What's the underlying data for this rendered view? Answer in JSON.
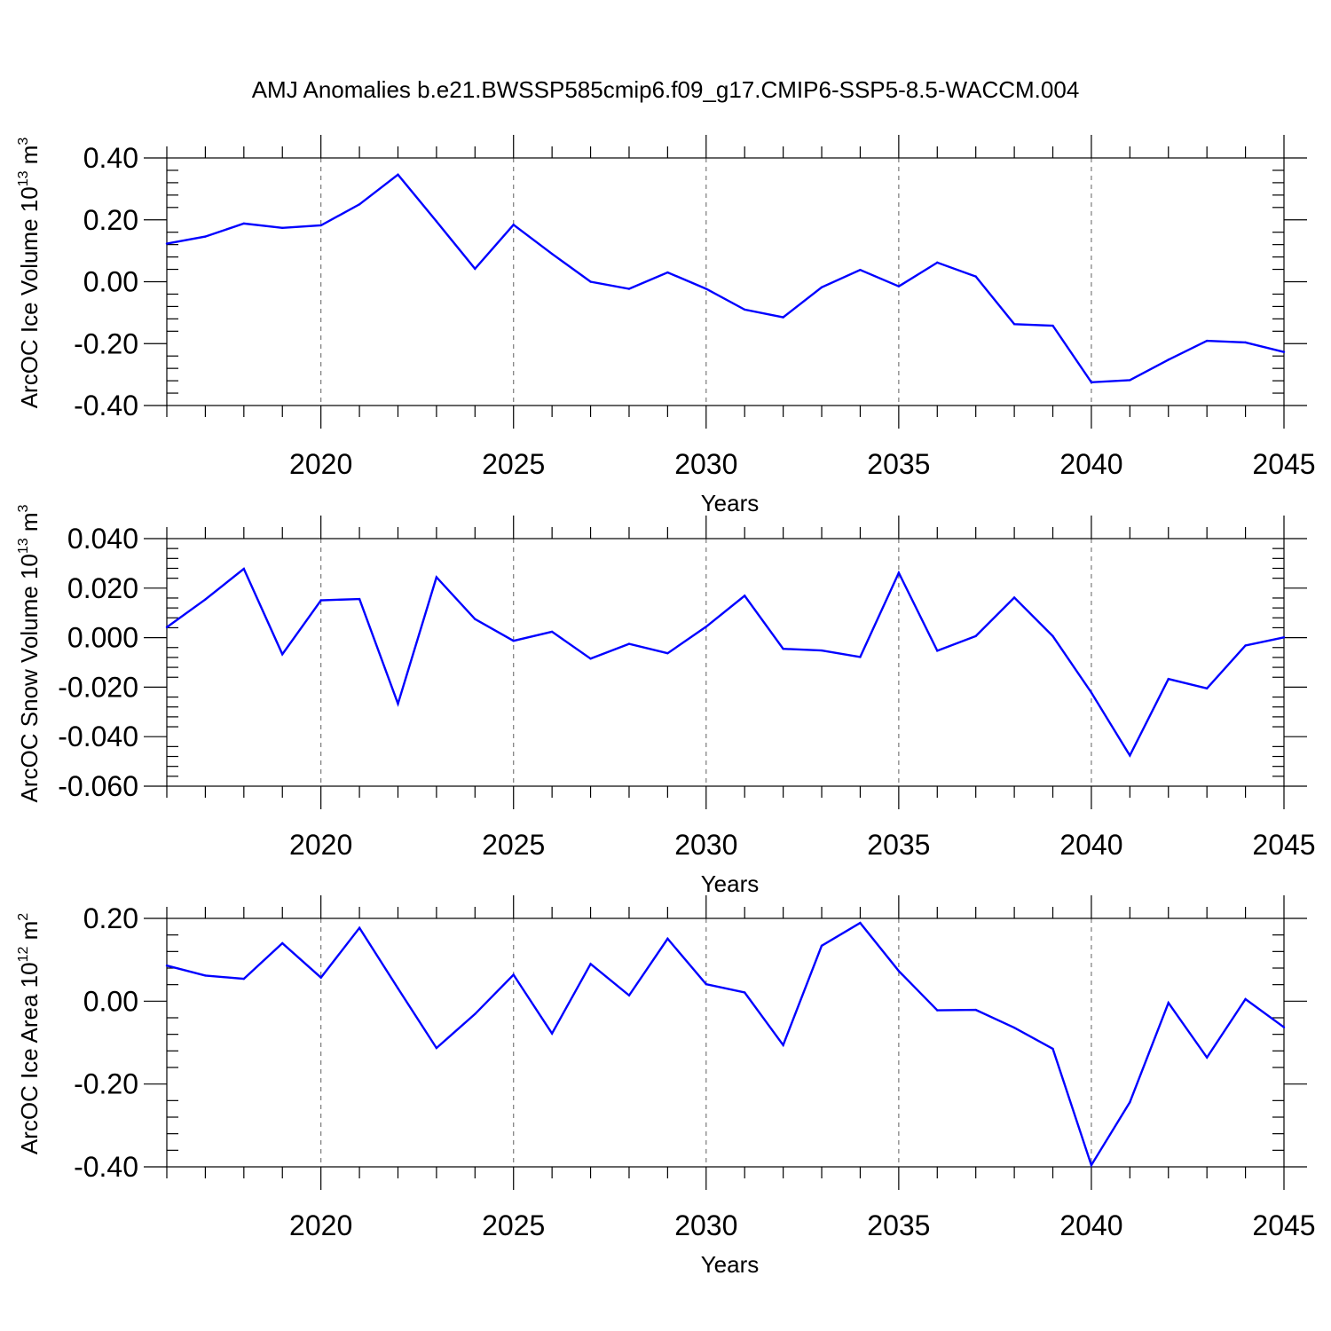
{
  "title": "AMJ Anomalies b.e21.BWSSP585cmip6.f09_g17.CMIP6-SSP5-8.5-WACCM.004",
  "colors": {
    "line": "#0000ff",
    "grid": "#7a7a7a",
    "axis": "#000000"
  },
  "chart_data": [
    {
      "type": "line",
      "xlabel": "Years",
      "ylabel": "ArcOC Ice Volume 10",
      "ylabel_sup": "13",
      "ylabel_unit": "m",
      "ylabel_unit_sup": "3",
      "xlim": [
        2016,
        2045
      ],
      "ylim": [
        -0.4,
        0.4
      ],
      "x_ticks": [
        2020,
        2025,
        2030,
        2035,
        2040,
        2045
      ],
      "x_tick_labels": [
        "2020",
        "2025",
        "2030",
        "2035",
        "2040",
        "2045"
      ],
      "y_ticks": [
        0.4,
        0.2,
        0.0,
        -0.2,
        -0.4
      ],
      "y_tick_labels": [
        "0.40",
        "0.20",
        "0.00",
        "-0.20",
        "-0.40"
      ],
      "grid": "dashed vertical at major x ticks",
      "x": [
        2016,
        2017,
        2018,
        2019,
        2020,
        2021,
        2022,
        2023,
        2024,
        2025,
        2026,
        2027,
        2028,
        2029,
        2030,
        2031,
        2032,
        2033,
        2034,
        2035,
        2036,
        2037,
        2038,
        2039,
        2040,
        2041,
        2042,
        2043,
        2044,
        2045
      ],
      "values": [
        0.123,
        0.146,
        0.188,
        0.174,
        0.182,
        0.25,
        0.346,
        0.195,
        0.042,
        0.184,
        0.09,
        0.0,
        -0.023,
        0.03,
        -0.023,
        -0.09,
        -0.115,
        -0.018,
        0.038,
        -0.015,
        0.062,
        0.017,
        -0.137,
        -0.142,
        -0.325,
        -0.318,
        -0.252,
        -0.191,
        -0.196,
        -0.227
      ]
    },
    {
      "type": "line",
      "xlabel": "Years",
      "ylabel": "ArcOC Snow Volume 10",
      "ylabel_sup": "13",
      "ylabel_unit": "m",
      "ylabel_unit_sup": "3",
      "xlim": [
        2016,
        2045
      ],
      "ylim": [
        -0.06,
        0.04
      ],
      "x_ticks": [
        2020,
        2025,
        2030,
        2035,
        2040,
        2045
      ],
      "x_tick_labels": [
        "2020",
        "2025",
        "2030",
        "2035",
        "2040",
        "2045"
      ],
      "y_ticks": [
        0.04,
        0.02,
        0.0,
        -0.02,
        -0.04,
        -0.06
      ],
      "y_tick_labels": [
        "0.040",
        "0.020",
        "0.000",
        "-0.020",
        "-0.040",
        "-0.060"
      ],
      "grid": "dashed vertical at major x ticks",
      "x": [
        2016,
        2017,
        2018,
        2019,
        2020,
        2021,
        2022,
        2023,
        2024,
        2025,
        2026,
        2027,
        2028,
        2029,
        2030,
        2031,
        2032,
        2033,
        2034,
        2035,
        2036,
        2037,
        2038,
        2039,
        2040,
        2041,
        2042,
        2043,
        2044,
        2045
      ],
      "values": [
        0.0042,
        0.0154,
        0.0278,
        -0.0067,
        0.0151,
        0.0156,
        -0.0267,
        0.0244,
        0.0075,
        -0.0013,
        0.0024,
        -0.0085,
        -0.0025,
        -0.0063,
        0.0044,
        0.0169,
        -0.0045,
        -0.0052,
        -0.0078,
        0.0262,
        -0.0053,
        0.0006,
        0.0162,
        0.0006,
        -0.0222,
        -0.0476,
        -0.0167,
        -0.0205,
        -0.0032,
        0.0001
      ]
    },
    {
      "type": "line",
      "xlabel": "Years",
      "ylabel": "ArcOC Ice Area 10",
      "ylabel_sup": "12",
      "ylabel_unit": "m",
      "ylabel_unit_sup": "2",
      "xlim": [
        2016,
        2045
      ],
      "ylim": [
        -0.4,
        0.2
      ],
      "x_ticks": [
        2020,
        2025,
        2030,
        2035,
        2040,
        2045
      ],
      "x_tick_labels": [
        "2020",
        "2025",
        "2030",
        "2035",
        "2040",
        "2045"
      ],
      "y_ticks": [
        0.2,
        0.0,
        -0.2,
        -0.4
      ],
      "y_tick_labels": [
        "0.20",
        "0.00",
        "-0.20",
        "-0.40"
      ],
      "grid": "dashed vertical at major x ticks",
      "x": [
        2016,
        2017,
        2018,
        2019,
        2020,
        2021,
        2022,
        2023,
        2024,
        2025,
        2026,
        2027,
        2028,
        2029,
        2030,
        2031,
        2032,
        2033,
        2034,
        2035,
        2036,
        2037,
        2038,
        2039,
        2040,
        2041,
        2042,
        2043,
        2044,
        2045
      ],
      "values": [
        0.086,
        0.062,
        0.054,
        0.14,
        0.057,
        0.177,
        0.031,
        -0.113,
        -0.031,
        0.064,
        -0.078,
        0.09,
        0.014,
        0.151,
        0.041,
        0.021,
        -0.106,
        0.134,
        0.189,
        0.073,
        -0.022,
        -0.021,
        -0.064,
        -0.115,
        -0.396,
        -0.244,
        -0.004,
        -0.136,
        0.005,
        -0.063
      ]
    }
  ]
}
